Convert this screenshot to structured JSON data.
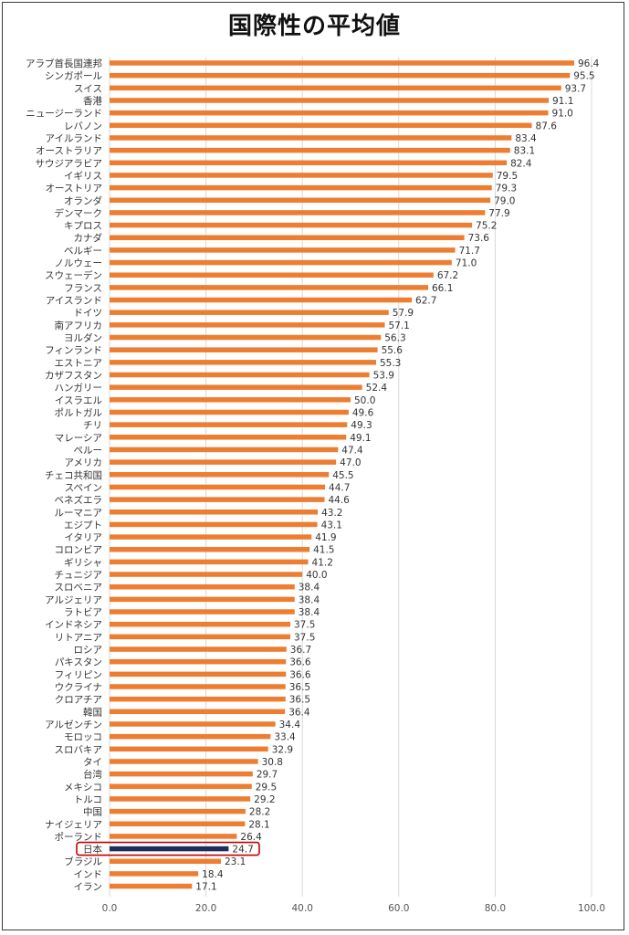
{
  "chart_data": {
    "type": "bar",
    "orientation": "horizontal",
    "title": "国際性の平均値",
    "categories": [
      "アラブ首長国連邦",
      "シンガポール",
      "スイス",
      "香港",
      "ニュージーランド",
      "レバノン",
      "アイルランド",
      "オーストラリア",
      "サウジアラビア",
      "イギリス",
      "オーストリア",
      "オランダ",
      "デンマーク",
      "キプロス",
      "カナダ",
      "ベルギー",
      "ノルウェー",
      "スウェーデン",
      "フランス",
      "アイスランド",
      "ドイツ",
      "南アフリカ",
      "ヨルダン",
      "フィンランド",
      "エストニア",
      "カザフスタン",
      "ハンガリー",
      "イスラエル",
      "ポルトガル",
      "チリ",
      "マレーシア",
      "ペルー",
      "アメリカ",
      "チェコ共和国",
      "スペイン",
      "ベネズエラ",
      "ルーマニア",
      "エジプト",
      "イタリア",
      "コロンビア",
      "ギリシャ",
      "チュニジア",
      "スロベニア",
      "アルジェリア",
      "ラトビア",
      "インドネシア",
      "リトアニア",
      "ロシア",
      "パキスタン",
      "フィリピン",
      "ウクライナ",
      "クロアチア",
      "韓国",
      "アルゼンチン",
      "モロッコ",
      "スロバキア",
      "タイ",
      "台湾",
      "メキシコ",
      "トルコ",
      "中国",
      "ナイジェリア",
      "ポーランド",
      "日本",
      "ブラジル",
      "インド",
      "イラン"
    ],
    "values": [
      96.4,
      95.5,
      93.7,
      91.1,
      91.0,
      87.6,
      83.4,
      83.1,
      82.4,
      79.5,
      79.3,
      79.0,
      77.9,
      75.2,
      73.6,
      71.7,
      71.0,
      67.2,
      66.1,
      62.7,
      57.9,
      57.1,
      56.3,
      55.6,
      55.3,
      53.9,
      52.4,
      50.0,
      49.6,
      49.3,
      49.1,
      47.4,
      47.0,
      45.5,
      44.7,
      44.6,
      43.2,
      43.1,
      41.9,
      41.5,
      41.2,
      40.0,
      38.4,
      38.4,
      38.4,
      37.5,
      37.5,
      36.7,
      36.6,
      36.6,
      36.5,
      36.5,
      36.4,
      34.4,
      33.4,
      32.9,
      30.8,
      29.7,
      29.5,
      29.2,
      28.2,
      28.1,
      26.4,
      24.7,
      23.1,
      18.4,
      17.1
    ],
    "value_labels": [
      "96.4",
      "95.5",
      "93.7",
      "91.1",
      "91.0",
      "87.6",
      "83.4",
      "83.1",
      "82.4",
      "79.5",
      "79.3",
      "79.0",
      "77.9",
      "75.2",
      "73.6",
      "71.7",
      "71.0",
      "67.2",
      "66.1",
      "62.7",
      "57.9",
      "57.1",
      "56.3",
      "55.6",
      "55.3",
      "53.9",
      "52.4",
      "50.0",
      "49.6",
      "49.3",
      "49.1",
      "47.4",
      "47.0",
      "45.5",
      "44.7",
      "44.6",
      "43.2",
      "43.1",
      "41.9",
      "41.5",
      "41.2",
      "40.0",
      "38.4",
      "38.4",
      "38.4",
      "37.5",
      "37.5",
      "36.7",
      "36.6",
      "36.6",
      "36.5",
      "36.5",
      "36.4",
      "34.4",
      "33.4",
      "32.9",
      "30.8",
      "29.7",
      "29.5",
      "29.2",
      "28.2",
      "28.1",
      "26.4",
      "24.7",
      "23.1",
      "18.4",
      "17.1"
    ],
    "highlight": "日本",
    "xlim": [
      0,
      100
    ],
    "xticks": [
      "0.0",
      "20.0",
      "40.0",
      "60.0",
      "80.0",
      "100.0"
    ],
    "grid": "vertical",
    "colors": {
      "bar": "#ED7D31",
      "highlight_bar": "#1F2D5C",
      "highlight_box": "#C00000",
      "grid": "#D9D9D9"
    }
  }
}
